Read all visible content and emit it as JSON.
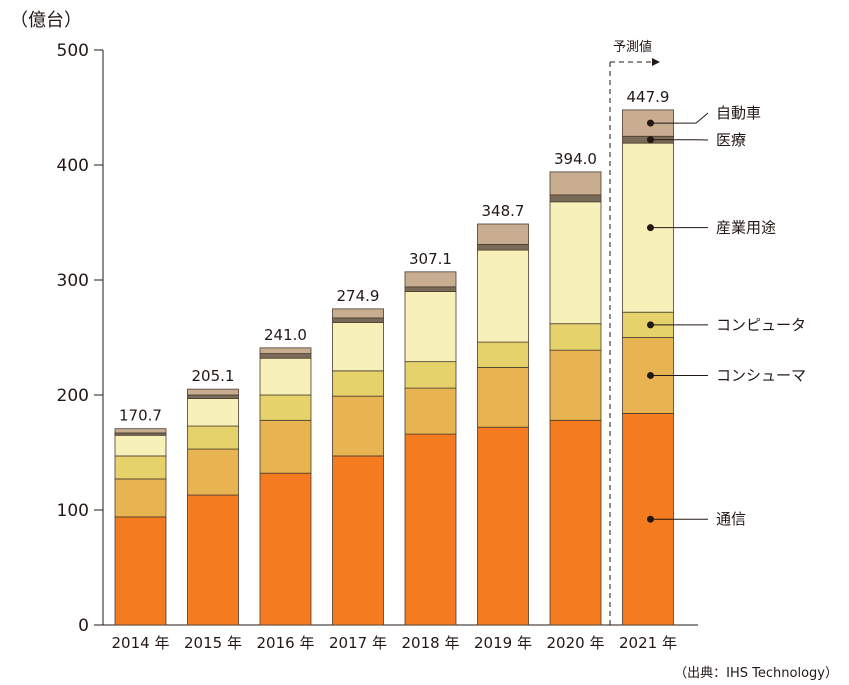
{
  "chart_data": {
    "type": "bar",
    "stacked": true,
    "unit_label": "（億台）",
    "ylim": [
      0,
      500
    ],
    "yticks": [
      0,
      100,
      200,
      300,
      400,
      500
    ],
    "categories": [
      "2014 年",
      "2015 年",
      "2016 年",
      "2017 年",
      "2018 年",
      "2019 年",
      "2020 年",
      "2021 年"
    ],
    "totals": [
      "170.7",
      "205.1",
      "241.0",
      "274.9",
      "307.1",
      "348.7",
      "394.0",
      "447.9"
    ],
    "series": [
      {
        "name": "通信",
        "color": "#f47b20",
        "values": [
          94,
          113,
          132,
          147,
          166,
          172,
          178,
          184
        ]
      },
      {
        "name": "コンシューマ",
        "color": "#e8b452",
        "values": [
          33,
          40,
          46,
          52,
          40,
          52,
          61,
          66
        ]
      },
      {
        "name": "コンピュータ",
        "color": "#e6d26a",
        "values": [
          20,
          20,
          22,
          22,
          23,
          22,
          23,
          22
        ]
      },
      {
        "name": "産業用途",
        "color": "#f7f1b9",
        "values": [
          18,
          24,
          32,
          42,
          61,
          80,
          106,
          147
        ]
      },
      {
        "name": "医療",
        "color": "#7a6a58",
        "values": [
          2,
          3,
          4,
          4,
          4,
          5,
          6,
          6
        ]
      },
      {
        "name": "自動車",
        "color": "#c8ad91",
        "values": [
          3.7,
          5.1,
          5.0,
          7.9,
          13.1,
          17.7,
          20.0,
          22.9
        ]
      }
    ],
    "legend": [
      "自動車",
      "医療",
      "産業用途",
      "コンピュータ",
      "コンシューマ",
      "通信"
    ],
    "forecast_label": "予測値",
    "source": "（出典：IHS Technology）"
  }
}
